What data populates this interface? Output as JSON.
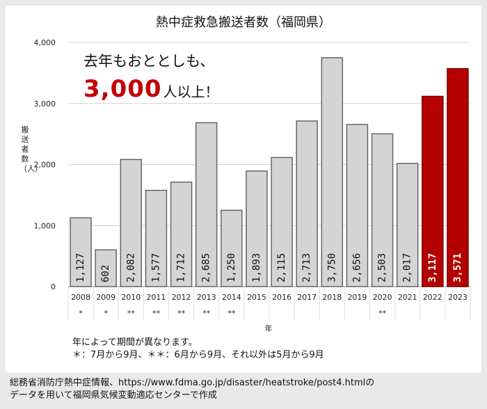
{
  "chart_data": {
    "type": "bar",
    "title": "熱中症救急搬送者数（福岡県）",
    "ylabel": "搬送者数（人）",
    "xlabel": "年",
    "ylim": [
      0,
      4000
    ],
    "yticks": [
      0,
      1000,
      2000,
      3000,
      4000
    ],
    "ytick_labels": [
      "0",
      "1,000",
      "2,000",
      "3,000",
      "4,000"
    ],
    "categories": [
      "2008",
      "2009",
      "2010",
      "2011",
      "2012",
      "2013",
      "2014",
      "2015",
      "2016",
      "2017",
      "2018",
      "2019",
      "2020",
      "2021",
      "2022",
      "2023"
    ],
    "values": [
      1127,
      602,
      2082,
      1577,
      1712,
      2685,
      1250,
      1893,
      2115,
      2713,
      3750,
      2656,
      2503,
      2017,
      3117,
      3571
    ],
    "value_labels": [
      "1,127",
      "602",
      "2,082",
      "1,577",
      "1,712",
      "2,685",
      "1,250",
      "1,893",
      "2,115",
      "2,713",
      "3,750",
      "2,656",
      "2,503",
      "2,017",
      "3,117",
      "3,571"
    ],
    "markers": [
      "*",
      "*",
      "**",
      "**",
      "**",
      "**",
      "**",
      "",
      "",
      "",
      "",
      "",
      "**",
      "",
      "",
      ""
    ],
    "highlight": [
      false,
      false,
      false,
      false,
      false,
      false,
      false,
      false,
      false,
      false,
      false,
      false,
      false,
      false,
      true,
      true
    ],
    "colors": {
      "bar": "#d4d4d4",
      "bar_edge": "#666666",
      "highlight": "#b40000",
      "highlight_edge": "#7a0000",
      "grid": "#d0d0d0"
    },
    "grid": true
  },
  "callout": {
    "line1": "去年もおととしも、",
    "big": "3,000",
    "rest": "人以上！"
  },
  "notes": {
    "line1": "年によって期間が異なります。",
    "line2": "＊：7月から9月、＊＊：6月から9月、それ以外は5月から9月"
  },
  "source": {
    "line1": "総務省消防庁熱中症情報、https://www.fdma.go.jp/disaster/heatstroke/post4.htmlの",
    "line2": "データを用いて福岡県気候変動適応センターで作成"
  }
}
